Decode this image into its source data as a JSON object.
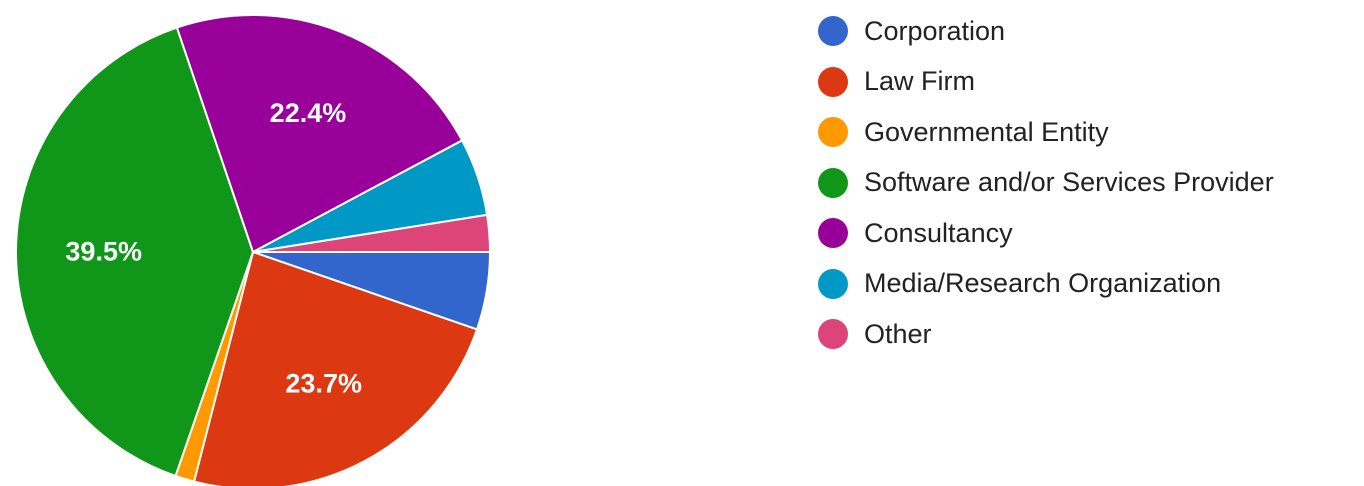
{
  "chart_data": {
    "type": "pie",
    "title": "",
    "legend_position": "right",
    "slices": [
      {
        "name": "Corporation",
        "value": 5.3,
        "color": "#3366cc",
        "label": ""
      },
      {
        "name": "Law Firm",
        "value": 23.7,
        "color": "#dc3912",
        "label": "23.7%"
      },
      {
        "name": "Governmental Entity",
        "value": 1.3,
        "color": "#ff9900",
        "label": ""
      },
      {
        "name": "Software and/or Services Provider",
        "value": 39.5,
        "color": "#109618",
        "label": "39.5%"
      },
      {
        "name": "Consultancy",
        "value": 22.4,
        "color": "#990099",
        "label": "22.4%"
      },
      {
        "name": "Media/Research Organization",
        "value": 5.3,
        "color": "#0099c6",
        "label": ""
      },
      {
        "name": "Other",
        "value": 2.5,
        "color": "#dd4477",
        "label": ""
      }
    ]
  }
}
